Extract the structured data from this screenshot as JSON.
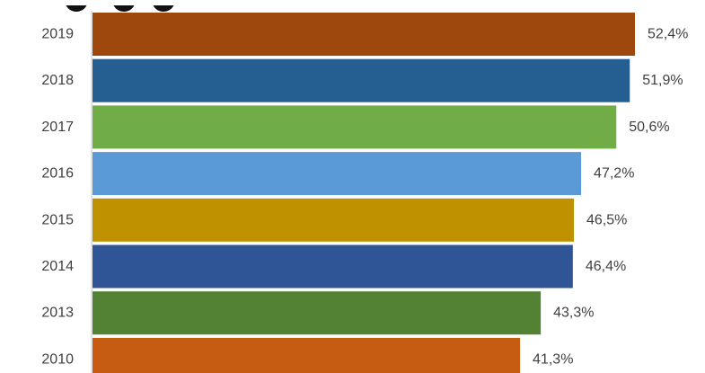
{
  "chart_data": {
    "type": "bar",
    "orientation": "horizontal",
    "categories": [
      "2019",
      "2018",
      "2017",
      "2016",
      "2015",
      "2014",
      "2013",
      "2010"
    ],
    "values": [
      52.4,
      51.9,
      50.6,
      47.2,
      46.5,
      46.4,
      43.3,
      41.3
    ],
    "data_labels": [
      "52,4%",
      "51,9%",
      "50,6%",
      "47,2%",
      "46,5%",
      "46,4%",
      "43,3%",
      "41,3%"
    ],
    "unit": "%",
    "colors": [
      "#9E480E",
      "#255E91",
      "#70AD47",
      "#5B9BD5",
      "#BF9000",
      "#2F5597",
      "#548235",
      "#C55A11"
    ],
    "xlim": [
      0,
      60
    ],
    "grid": false,
    "legend": "none"
  }
}
